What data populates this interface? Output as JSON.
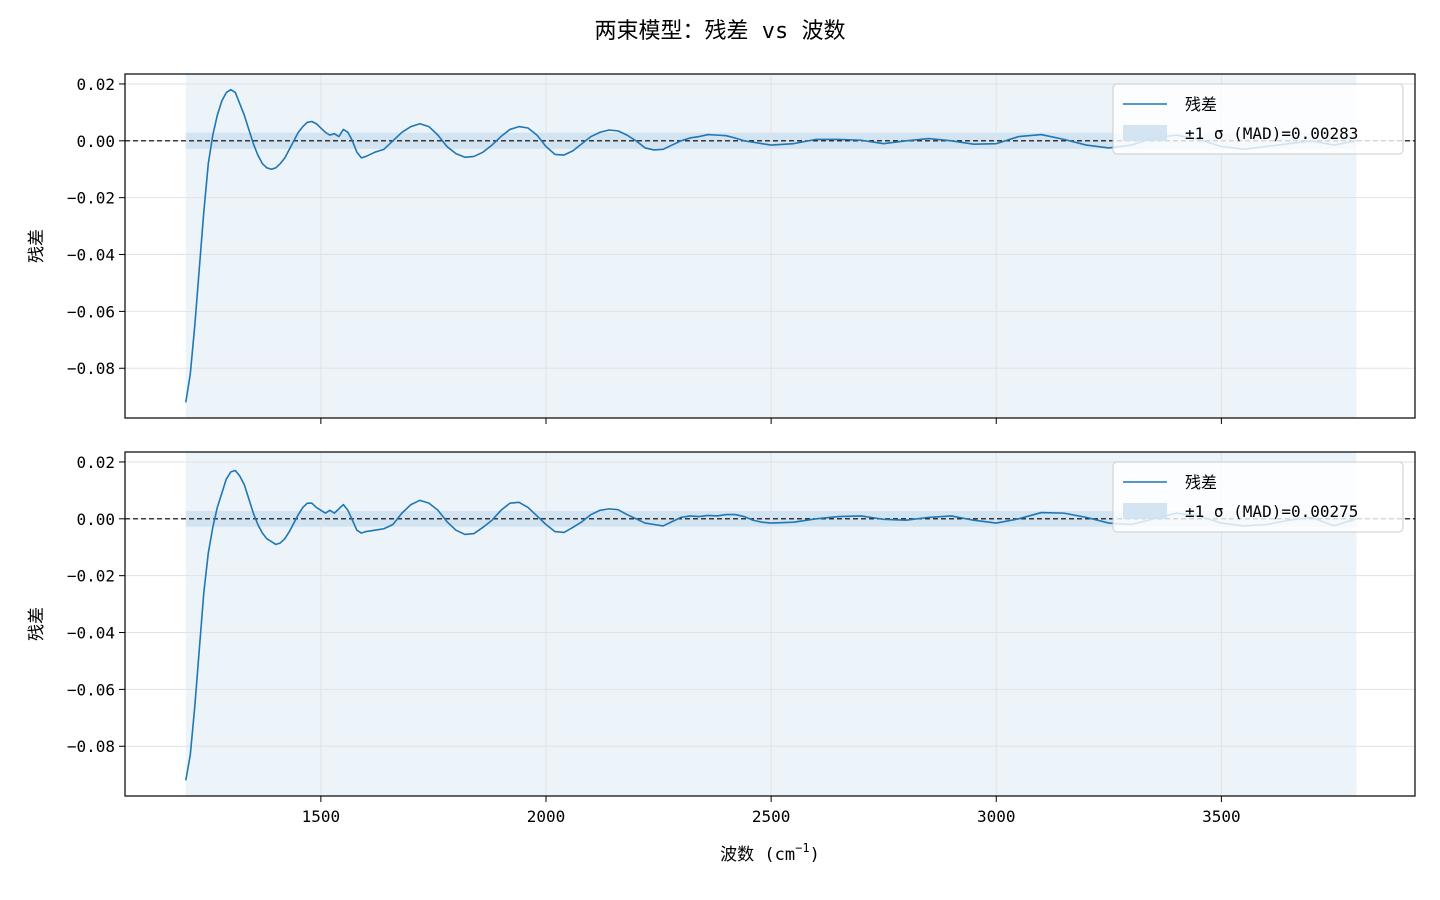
{
  "figure": {
    "title": "两束模型：残差 vs 波数",
    "xlabel": "波数 (cm",
    "xlabel_sup": "−1",
    "xlabel_close": ")"
  },
  "colors": {
    "line": "#1f77b4",
    "band": "#cfe1f1",
    "grid": "#e2e2e2",
    "zero": "#000000"
  },
  "chart_data": [
    {
      "type": "line",
      "id": "top",
      "ylabel": "残差",
      "xlim": [
        1065,
        3930
      ],
      "ylim": [
        -0.0975,
        0.0235
      ],
      "xticks": [
        1500,
        2000,
        2500,
        3000,
        3500
      ],
      "xtick_labels": [
        "",
        "",
        "",
        "",
        ""
      ],
      "yticks": [
        0.02,
        0.0,
        -0.02,
        -0.04,
        -0.06,
        -0.08
      ],
      "ytick_labels": [
        "0.02",
        "0.00",
        "−0.02",
        "−0.04",
        "−0.06",
        "−0.08"
      ],
      "band": {
        "x": [
          1200,
          3800
        ],
        "sigma": 0.00283
      },
      "legend": {
        "position": "upper-right",
        "line_label": "残差",
        "band_label": "±1 σ (MAD)=0.00283"
      },
      "series": [
        {
          "x": [
            1200,
            1210,
            1220,
            1230,
            1240,
            1250,
            1260,
            1270,
            1280,
            1290,
            1300,
            1310,
            1320,
            1330,
            1340,
            1350,
            1360,
            1370,
            1380,
            1390,
            1400,
            1410,
            1420,
            1430,
            1440,
            1450,
            1460,
            1470,
            1480,
            1490,
            1500,
            1510,
            1520,
            1530,
            1540,
            1550,
            1560,
            1570,
            1580,
            1590,
            1600,
            1620,
            1640,
            1660,
            1680,
            1700,
            1720,
            1740,
            1760,
            1780,
            1800,
            1820,
            1840,
            1860,
            1880,
            1900,
            1920,
            1940,
            1960,
            1980,
            2000,
            2020,
            2040,
            2060,
            2080,
            2100,
            2120,
            2140,
            2160,
            2180,
            2200,
            2220,
            2240,
            2260,
            2280,
            2300,
            2320,
            2340,
            2360,
            2380,
            2400,
            2420,
            2440,
            2460,
            2480,
            2500,
            2550,
            2600,
            2650,
            2700,
            2750,
            2800,
            2850,
            2900,
            2950,
            3000,
            3050,
            3100,
            3150,
            3200,
            3250,
            3300,
            3350,
            3400,
            3450,
            3500,
            3550,
            3600,
            3650,
            3700,
            3750,
            3800
          ],
          "y": [
            -0.092,
            -0.082,
            -0.065,
            -0.045,
            -0.025,
            -0.008,
            0.002,
            0.009,
            0.014,
            0.017,
            0.018,
            0.017,
            0.013,
            0.009,
            0.004,
            -0.001,
            -0.005,
            -0.008,
            -0.0095,
            -0.01,
            -0.0095,
            -0.008,
            -0.006,
            -0.003,
            0.0,
            0.003,
            0.005,
            0.0065,
            0.0068,
            0.006,
            0.0045,
            0.003,
            0.002,
            0.0025,
            0.0015,
            0.004,
            0.003,
            0.0,
            -0.004,
            -0.006,
            -0.0055,
            -0.004,
            -0.003,
            0.0,
            0.003,
            0.005,
            0.006,
            0.005,
            0.002,
            -0.002,
            -0.0045,
            -0.0058,
            -0.0055,
            -0.004,
            -0.0015,
            0.0015,
            0.004,
            0.005,
            0.0045,
            0.002,
            -0.002,
            -0.0048,
            -0.005,
            -0.0035,
            -0.001,
            0.0015,
            0.003,
            0.0038,
            0.0035,
            0.002,
            0.0,
            -0.0025,
            -0.0032,
            -0.003,
            -0.0015,
            0.0,
            0.001,
            0.0015,
            0.0022,
            0.002,
            0.0018,
            0.001,
            0.0,
            -0.0005,
            -0.001,
            -0.0015,
            -0.001,
            0.0005,
            0.0005,
            0.0002,
            -0.001,
            0.0,
            0.0008,
            0.0,
            -0.0012,
            -0.001,
            0.0015,
            0.0022,
            0.0005,
            -0.0015,
            -0.0025,
            -0.0015,
            0.001,
            0.002,
            0.0005,
            -0.002,
            -0.003,
            -0.002,
            -0.001,
            0.0,
            -0.0015,
            0.0
          ]
        }
      ]
    },
    {
      "type": "line",
      "id": "bottom",
      "ylabel": "残差",
      "xlim": [
        1065,
        3930
      ],
      "ylim": [
        -0.0975,
        0.0235
      ],
      "xticks": [
        1500,
        2000,
        2500,
        3000,
        3500
      ],
      "xtick_labels": [
        "1500",
        "2000",
        "2500",
        "3000",
        "3500"
      ],
      "yticks": [
        0.02,
        0.0,
        -0.02,
        -0.04,
        -0.06,
        -0.08
      ],
      "ytick_labels": [
        "0.02",
        "0.00",
        "−0.02",
        "−0.04",
        "−0.06",
        "−0.08"
      ],
      "band": {
        "x": [
          1200,
          3800
        ],
        "sigma": 0.00275
      },
      "legend": {
        "position": "upper-right",
        "line_label": "残差",
        "band_label": "±1 σ (MAD)=0.00275"
      },
      "series": [
        {
          "x": [
            1200,
            1210,
            1220,
            1230,
            1240,
            1250,
            1260,
            1270,
            1280,
            1290,
            1300,
            1310,
            1320,
            1330,
            1340,
            1350,
            1360,
            1370,
            1380,
            1390,
            1400,
            1410,
            1420,
            1430,
            1440,
            1450,
            1460,
            1470,
            1480,
            1490,
            1500,
            1510,
            1520,
            1530,
            1540,
            1550,
            1560,
            1570,
            1580,
            1590,
            1600,
            1620,
            1640,
            1660,
            1680,
            1700,
            1720,
            1740,
            1760,
            1780,
            1800,
            1820,
            1840,
            1860,
            1880,
            1900,
            1920,
            1940,
            1960,
            1980,
            2000,
            2020,
            2040,
            2060,
            2080,
            2100,
            2120,
            2140,
            2160,
            2180,
            2200,
            2220,
            2240,
            2260,
            2280,
            2300,
            2320,
            2340,
            2360,
            2380,
            2400,
            2420,
            2440,
            2460,
            2480,
            2500,
            2550,
            2600,
            2650,
            2700,
            2750,
            2800,
            2850,
            2900,
            2950,
            3000,
            3050,
            3100,
            3150,
            3200,
            3250,
            3300,
            3350,
            3400,
            3450,
            3500,
            3550,
            3600,
            3650,
            3700,
            3750,
            3800
          ],
          "y": [
            -0.092,
            -0.083,
            -0.066,
            -0.046,
            -0.026,
            -0.012,
            -0.003,
            0.004,
            0.009,
            0.014,
            0.0165,
            0.017,
            0.015,
            0.012,
            0.007,
            0.002,
            -0.002,
            -0.005,
            -0.007,
            -0.008,
            -0.009,
            -0.0085,
            -0.007,
            -0.0045,
            -0.0015,
            0.0015,
            0.004,
            0.0055,
            0.0055,
            0.004,
            0.003,
            0.002,
            0.003,
            0.002,
            0.0035,
            0.005,
            0.003,
            -0.0005,
            -0.004,
            -0.005,
            -0.0045,
            -0.004,
            -0.0035,
            -0.002,
            0.002,
            0.005,
            0.0065,
            0.0055,
            0.003,
            -0.001,
            -0.004,
            -0.0055,
            -0.0052,
            -0.003,
            -0.0005,
            0.003,
            0.0055,
            0.0058,
            0.004,
            0.001,
            -0.002,
            -0.0045,
            -0.0048,
            -0.003,
            -0.001,
            0.0015,
            0.003,
            0.0035,
            0.0032,
            0.0015,
            0.0,
            -0.0015,
            -0.002,
            -0.0025,
            -0.001,
            0.0005,
            0.001,
            0.0008,
            0.0012,
            0.001,
            0.0015,
            0.0015,
            0.0008,
            -0.0005,
            -0.0012,
            -0.0015,
            -0.0012,
            0.0,
            0.0008,
            0.001,
            -0.0002,
            -0.0005,
            0.0005,
            0.001,
            -0.0005,
            -0.0015,
            0.0,
            0.0022,
            0.002,
            0.0005,
            -0.0015,
            -0.002,
            0.0,
            0.002,
            0.001,
            -0.0015,
            -0.0025,
            -0.002,
            -0.0005,
            0.0005,
            -0.0025,
            0.0
          ]
        }
      ]
    }
  ]
}
